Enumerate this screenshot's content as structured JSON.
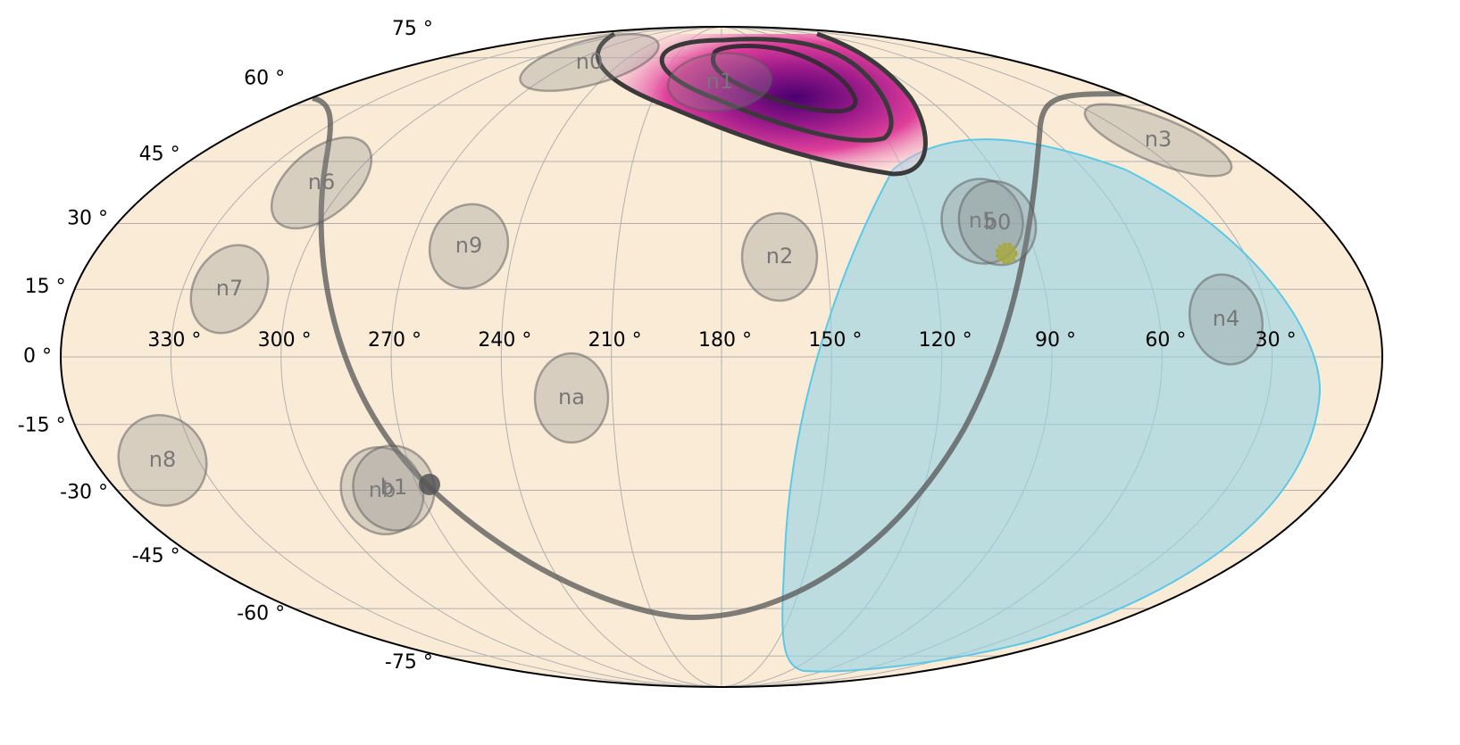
{
  "map": {
    "projection": "mollweide",
    "lon_ticks": [
      {
        "value": 330,
        "label": "330 °"
      },
      {
        "value": 300,
        "label": "300 °"
      },
      {
        "value": 270,
        "label": "270 °"
      },
      {
        "value": 240,
        "label": "240 °"
      },
      {
        "value": 210,
        "label": "210 °"
      },
      {
        "value": 180,
        "label": "180 °"
      },
      {
        "value": 150,
        "label": "150 °"
      },
      {
        "value": 120,
        "label": "120 °"
      },
      {
        "value": 90,
        "label": "90 °"
      },
      {
        "value": 60,
        "label": "60 °"
      },
      {
        "value": 30,
        "label": "30 °"
      }
    ],
    "lat_ticks": [
      {
        "value": 75,
        "label": "75 °"
      },
      {
        "value": 60,
        "label": "60 °"
      },
      {
        "value": 45,
        "label": "45 °"
      },
      {
        "value": 30,
        "label": "30 °"
      },
      {
        "value": 15,
        "label": "15 °"
      },
      {
        "value": 0,
        "label": "0 °"
      },
      {
        "value": -15,
        "label": "-15 °"
      },
      {
        "value": -30,
        "label": "-30 °"
      },
      {
        "value": -45,
        "label": "-45 °"
      },
      {
        "value": -60,
        "label": "-60 °"
      },
      {
        "value": -75,
        "label": "-75 °"
      }
    ],
    "detectors": [
      "n0",
      "n1",
      "n2",
      "n3",
      "n4",
      "n5",
      "n6",
      "n7",
      "n8",
      "n9",
      "na",
      "nb",
      "b0",
      "b1"
    ]
  }
}
